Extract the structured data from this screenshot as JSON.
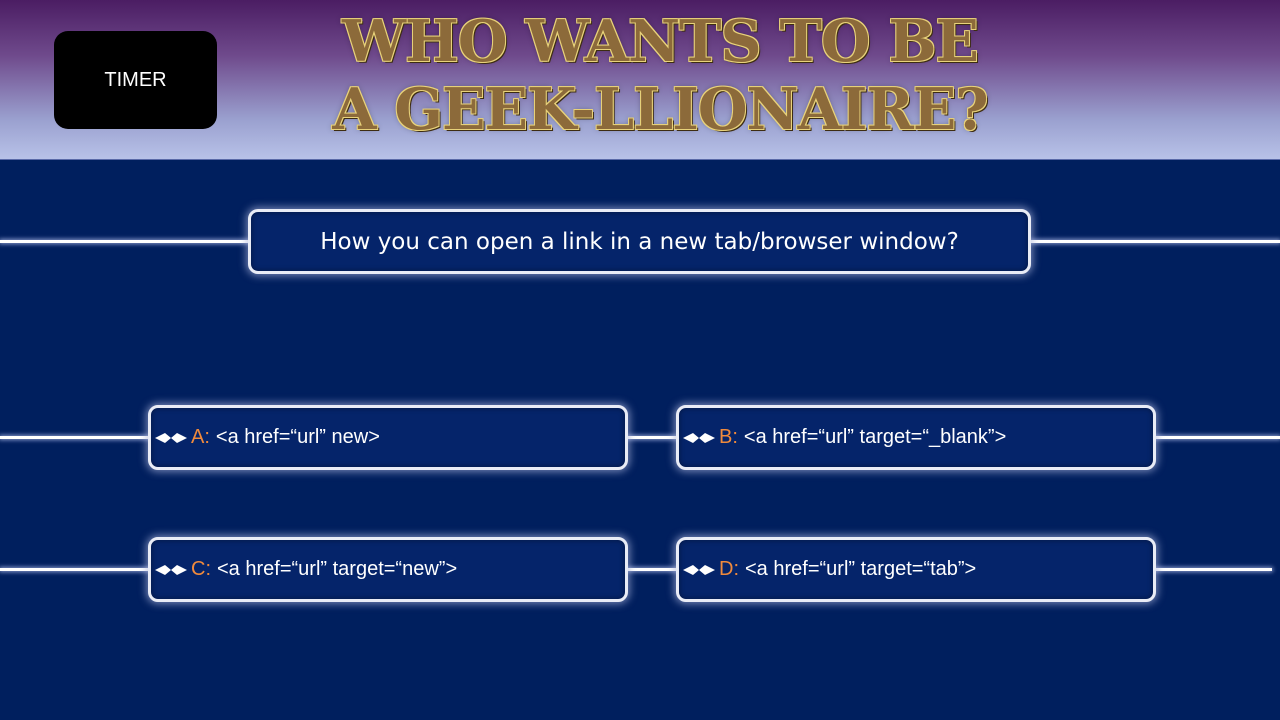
{
  "header": {
    "timer_label": "TIMER",
    "title_line1": "WHO WANTS TO BE",
    "title_line2": "A GEEK-LLIONAIRE?"
  },
  "question": {
    "text": "How you can open a link in a new tab/browser window?"
  },
  "answers": [
    {
      "letter": "A:",
      "text": "<a href=“url” new>"
    },
    {
      "letter": "B:",
      "text": "<a href=“url” target=“_blank”>"
    },
    {
      "letter": "C:",
      "text": "<a href=“url” target=“new”>"
    },
    {
      "letter": "D:",
      "text": "<a href=“url” target=“tab”>"
    }
  ],
  "colors": {
    "background": "#001f5e",
    "answer_letter": "#f08a3c",
    "title_fill": "#8c6a3a",
    "title_outline": "#e8d27a"
  }
}
